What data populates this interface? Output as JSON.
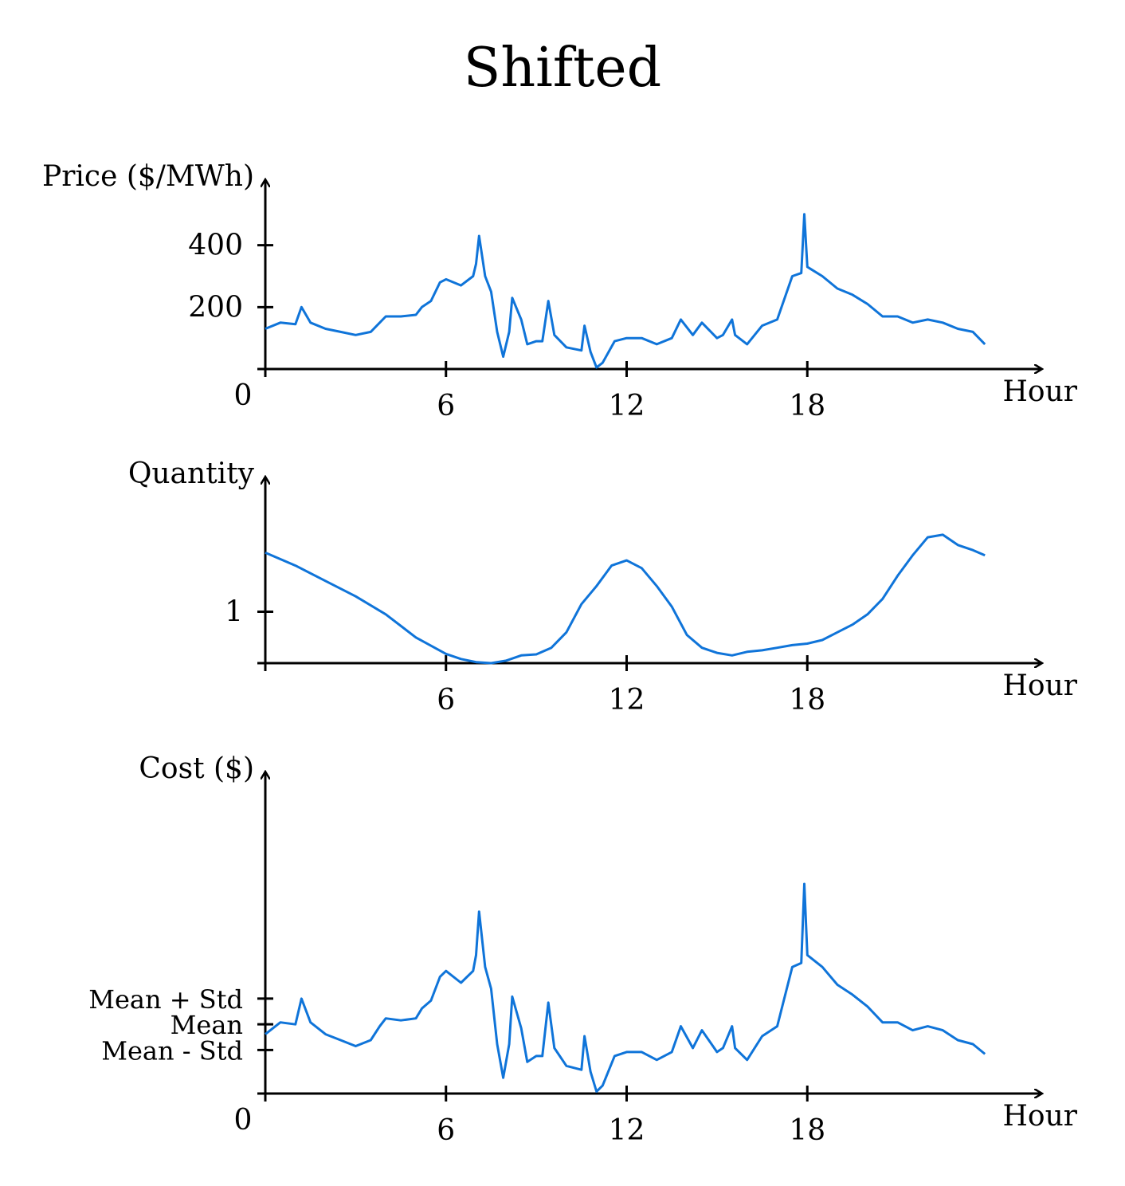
{
  "title": "Shifted",
  "line_color": "#0f74d9",
  "axis_color": "#000000",
  "chart_data": [
    {
      "type": "line",
      "panel": "price",
      "ylabel": "Price ($/MWh)",
      "xlabel": "Hour",
      "origin_label": "0",
      "x_ticks": [
        6,
        12,
        18
      ],
      "x_tick_labels": [
        "6",
        "12",
        "18"
      ],
      "y_ticks": [
        200,
        400
      ],
      "y_tick_labels": [
        "200",
        "400"
      ],
      "xlim": [
        0,
        24.5
      ],
      "ylim": [
        0,
        600
      ],
      "grid": false,
      "series": [
        {
          "x": [
            0,
            0.5,
            1,
            1.2,
            1.5,
            2,
            2.5,
            3,
            3.5,
            3.8,
            4,
            4.5,
            5,
            5.2,
            5.5,
            5.8,
            6,
            6.5,
            6.9,
            7.0,
            7.1,
            7.3,
            7.5,
            7.7,
            7.9,
            8.1,
            8.2,
            8.5,
            8.7,
            9,
            9.2,
            9.4,
            9.6,
            10,
            10.5,
            10.6,
            10.8,
            11.0,
            11.2,
            11.6,
            12,
            12.5,
            13,
            13.5,
            13.8,
            14.2,
            14.5,
            15,
            15.2,
            15.5,
            15.6,
            16,
            16.5,
            17,
            17.5,
            17.8,
            17.9,
            18,
            18.5,
            19,
            19.5,
            20,
            20.5,
            21,
            21.5,
            22,
            22.5,
            23,
            23.5,
            23.9
          ],
          "y": [
            130,
            150,
            145,
            200,
            150,
            130,
            120,
            110,
            120,
            150,
            170,
            170,
            175,
            200,
            220,
            280,
            290,
            270,
            300,
            340,
            430,
            300,
            250,
            120,
            40,
            120,
            230,
            160,
            80,
            90,
            90,
            220,
            110,
            70,
            60,
            140,
            55,
            5,
            20,
            90,
            100,
            100,
            80,
            100,
            160,
            110,
            150,
            100,
            110,
            160,
            110,
            80,
            140,
            160,
            300,
            310,
            500,
            330,
            300,
            260,
            240,
            210,
            170,
            170,
            150,
            160,
            150,
            130,
            120,
            80
          ]
        }
      ]
    },
    {
      "type": "line",
      "panel": "quantity",
      "ylabel": "Quantity",
      "xlabel": "Hour",
      "x_ticks": [
        6,
        12,
        18
      ],
      "x_tick_labels": [
        "6",
        "12",
        "18"
      ],
      "y_ticks": [
        1
      ],
      "y_tick_labels": [
        "1"
      ],
      "xlim": [
        0,
        24.5
      ],
      "ylim": [
        0,
        3.6
      ],
      "grid": false,
      "series": [
        {
          "x": [
            0,
            1,
            2,
            3,
            4,
            5,
            6,
            6.5,
            7,
            7.5,
            8,
            8.5,
            9,
            9.5,
            10,
            10.5,
            11,
            11.5,
            12,
            12.5,
            13,
            13.5,
            14,
            14.5,
            15,
            15.5,
            16,
            16.5,
            17,
            17.5,
            18,
            18.5,
            19,
            19.5,
            20,
            20.5,
            21,
            21.5,
            22,
            22.5,
            23,
            23.5,
            23.9
          ],
          "y": [
            2.15,
            1.9,
            1.6,
            1.3,
            0.95,
            0.5,
            0.18,
            0.08,
            0.02,
            0.0,
            0.05,
            0.15,
            0.17,
            0.3,
            0.6,
            1.15,
            1.5,
            1.9,
            2.0,
            1.85,
            1.5,
            1.1,
            0.55,
            0.3,
            0.2,
            0.15,
            0.22,
            0.25,
            0.3,
            0.35,
            0.38,
            0.45,
            0.6,
            0.75,
            0.95,
            1.25,
            1.7,
            2.1,
            2.45,
            2.5,
            2.3,
            2.2,
            2.1
          ]
        }
      ]
    },
    {
      "type": "line",
      "panel": "cost",
      "ylabel": "Cost ($)",
      "xlabel": "Hour",
      "origin_label": "0",
      "x_ticks": [
        6,
        12,
        18
      ],
      "x_tick_labels": [
        "6",
        "12",
        "18"
      ],
      "y_ticks": [
        110,
        175,
        240
      ],
      "y_tick_labels": [
        "Mean - Std",
        "Mean",
        "Mean + Std"
      ],
      "xlim": [
        0,
        24.5
      ],
      "ylim": [
        0,
        800
      ],
      "grid": false,
      "series": [
        {
          "x": [
            0,
            0.5,
            1,
            1.2,
            1.5,
            2,
            2.5,
            3,
            3.5,
            3.8,
            4,
            4.5,
            5,
            5.2,
            5.5,
            5.8,
            6,
            6.5,
            6.9,
            7.0,
            7.1,
            7.3,
            7.5,
            7.7,
            7.9,
            8.1,
            8.2,
            8.5,
            8.7,
            9,
            9.2,
            9.4,
            9.6,
            10,
            10.5,
            10.6,
            10.8,
            11.0,
            11.2,
            11.6,
            12,
            12.5,
            13,
            13.5,
            13.8,
            14.2,
            14.5,
            15,
            15.2,
            15.5,
            15.6,
            16,
            16.5,
            17,
            17.5,
            17.8,
            17.9,
            18,
            18.5,
            19,
            19.5,
            20,
            20.5,
            21,
            21.5,
            22,
            22.5,
            23,
            23.5,
            23.9
          ],
          "y": [
            150,
            180,
            175,
            240,
            180,
            150,
            135,
            120,
            135,
            170,
            190,
            185,
            190,
            215,
            235,
            295,
            310,
            280,
            310,
            350,
            460,
            320,
            265,
            125,
            40,
            125,
            245,
            165,
            80,
            95,
            95,
            230,
            115,
            70,
            60,
            145,
            55,
            5,
            20,
            95,
            105,
            105,
            85,
            105,
            170,
            115,
            160,
            105,
            115,
            170,
            115,
            85,
            145,
            170,
            320,
            330,
            530,
            350,
            320,
            275,
            250,
            220,
            180,
            180,
            160,
            170,
            160,
            135,
            125,
            100
          ]
        }
      ]
    }
  ]
}
